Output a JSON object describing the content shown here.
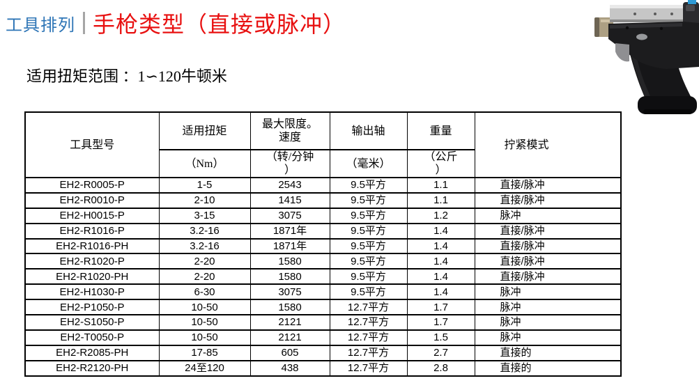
{
  "header": {
    "section_label": "工具排列",
    "divider": "|",
    "title": "手枪类型（直接或脉冲）",
    "subtitle": "适用扭矩范围 ：1∽120牛顿米"
  },
  "colors": {
    "section_label_blue": "#2E75B6",
    "title_red": "#E81111",
    "divider_gray": "#A6A6A6",
    "table_border": "#000000",
    "photo_body_black": "#1C1C1E",
    "photo_rail_silver": "#C6C6C6",
    "photo_chuck_brass": "#AC9F83",
    "photo_corner_blue": "#2E9BD6"
  },
  "images": {
    "tool_photo_icon": "pistol-grip-nutrunner-photo"
  },
  "table": {
    "columns": {
      "model": "工具型号",
      "torque": "适用扭矩",
      "torque_unit": "（Nm）",
      "speed": "最大限度。\n速度",
      "speed_unit": "（转/分钟\n）",
      "shaft": "输出轴",
      "shaft_unit": "（毫米）",
      "weight": "重量",
      "weight_unit": "（公斤\n）",
      "mode": "拧紧模式"
    },
    "rows": [
      {
        "model": "EH2-R0005-P",
        "torque": "1-5",
        "speed": "2543",
        "shaft": "9.5平方",
        "weight": "1.1",
        "mode": "直接/脉冲"
      },
      {
        "model": "EH2-R0010-P",
        "torque": "2-10",
        "speed": "1415",
        "shaft": "9.5平方",
        "weight": "1.1",
        "mode": "直接/脉冲"
      },
      {
        "model": "EH2-H0015-P",
        "torque": "3-15",
        "speed": "3075",
        "shaft": "9.5平方",
        "weight": "1.2",
        "mode": "脉冲"
      },
      {
        "model": "EH2-R1016-P",
        "torque": "3.2-16",
        "speed": "1871年",
        "shaft": "9.5平方",
        "weight": "1.4",
        "mode": "直接/脉冲"
      },
      {
        "model": "EH2-R1016-PH",
        "torque": "3.2-16",
        "speed": "1871年",
        "shaft": "9.5平方",
        "weight": "1.4",
        "mode": "直接/脉冲"
      },
      {
        "model": "EH2-R1020-P",
        "torque": "2-20",
        "speed": "1580",
        "shaft": "9.5平方",
        "weight": "1.4",
        "mode": "直接/脉冲"
      },
      {
        "model": "EH2-R1020-PH",
        "torque": "2-20",
        "speed": "1580",
        "shaft": "9.5平方",
        "weight": "1.4",
        "mode": "直接/脉冲"
      },
      {
        "model": "EH2-H1030-P",
        "torque": "6-30",
        "speed": "3075",
        "shaft": "9.5平方",
        "weight": "1.4",
        "mode": "脉冲"
      },
      {
        "model": "EH2-P1050-P",
        "torque": "10-50",
        "speed": "1580",
        "shaft": "12.7平方",
        "weight": "1.7",
        "mode": "脉冲"
      },
      {
        "model": "EH2-S1050-P",
        "torque": "10-50",
        "speed": "2121",
        "shaft": "12.7平方",
        "weight": "1.7",
        "mode": "脉冲"
      },
      {
        "model": "EH2-T0050-P",
        "torque": "10-50",
        "speed": "2121",
        "shaft": "12.7平方",
        "weight": "1.5",
        "mode": "脉冲"
      },
      {
        "model": "EH2-R2085-PH",
        "torque": "17-85",
        "speed": "605",
        "shaft": "12.7平方",
        "weight": "2.7",
        "mode": "直接的"
      },
      {
        "model": "EH2-R2120-PH",
        "torque": "24至120",
        "speed": "438",
        "shaft": "12.7平方",
        "weight": "2.8",
        "mode": "直接的"
      }
    ]
  }
}
